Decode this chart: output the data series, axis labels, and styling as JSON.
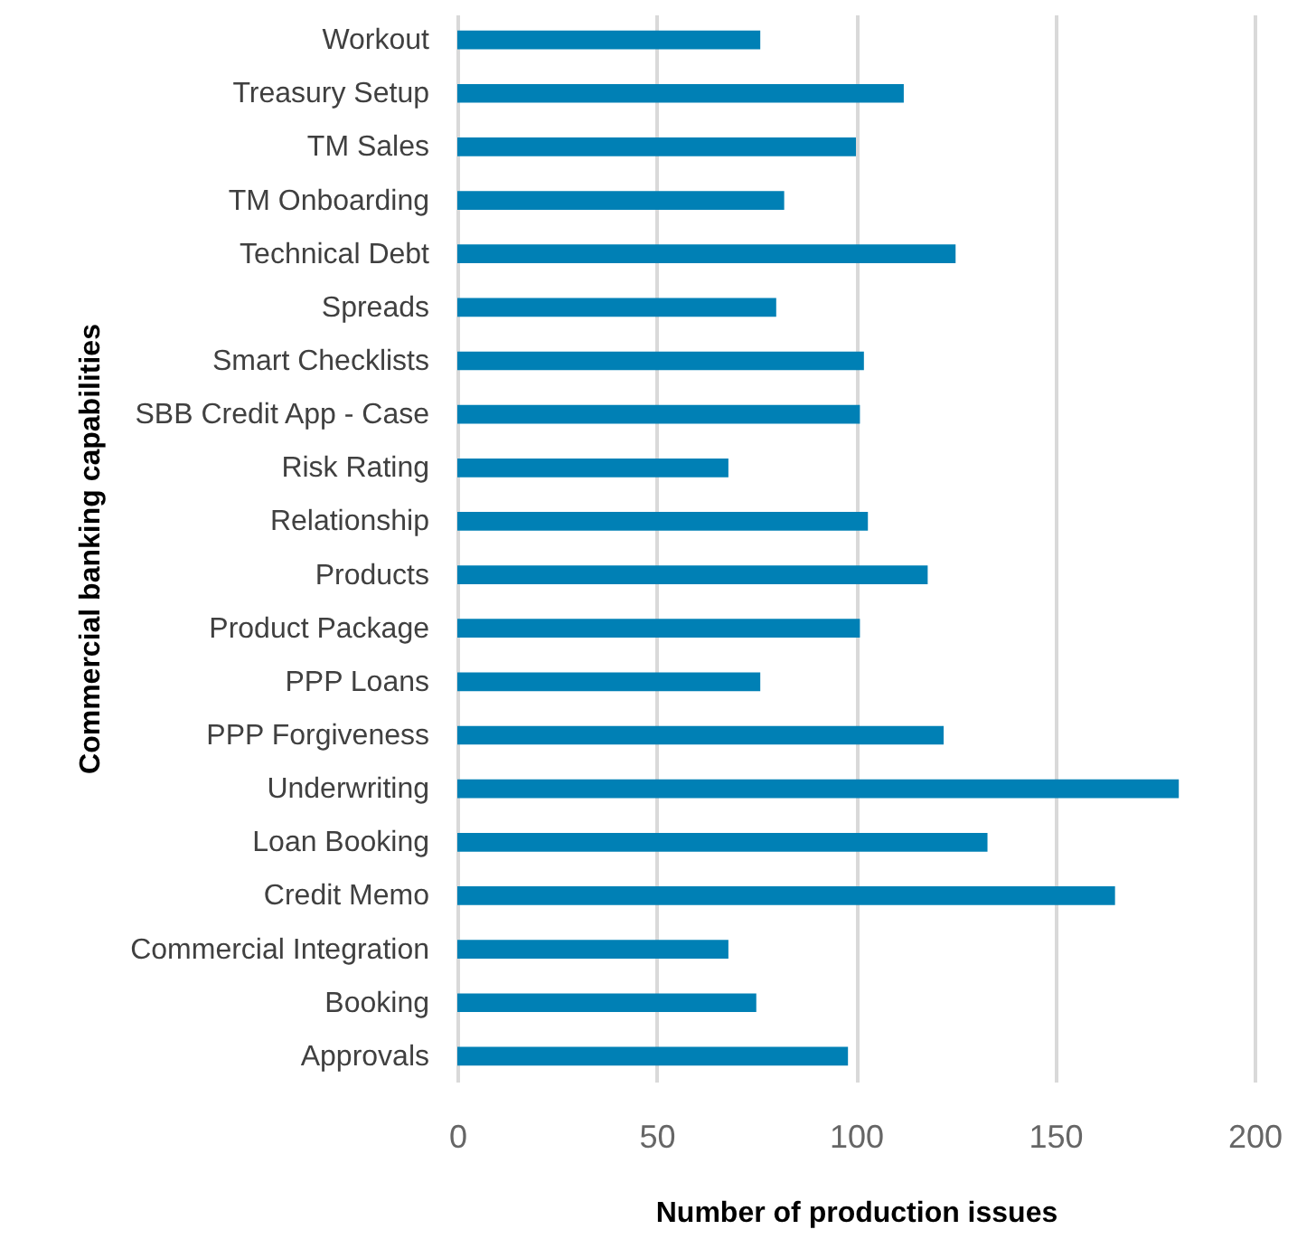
{
  "chart_data": {
    "type": "bar",
    "orientation": "horizontal",
    "xlabel": "Number of production issues",
    "ylabel": "Commercial banking capabilities",
    "categories": [
      "Workout",
      "Treasury Setup",
      "TM Sales",
      "TM Onboarding",
      "Technical Debt",
      "Spreads",
      "Smart Checklists",
      "SBB Credit App - Case",
      "Risk Rating",
      "Relationship",
      "Products",
      "Product Package",
      "PPP Loans",
      "PPP Forgiveness",
      "Underwriting",
      "Loan Booking",
      "Credit Memo",
      "Commercial Integration",
      "Booking",
      "Approvals"
    ],
    "values": [
      76,
      112,
      100,
      82,
      125,
      80,
      102,
      101,
      68,
      103,
      118,
      101,
      76,
      122,
      181,
      133,
      165,
      68,
      75,
      98
    ],
    "color": "#0080b5",
    "xlim": [
      0,
      200
    ],
    "xticks": [
      0,
      50,
      100,
      150,
      200
    ],
    "grid": "x"
  }
}
